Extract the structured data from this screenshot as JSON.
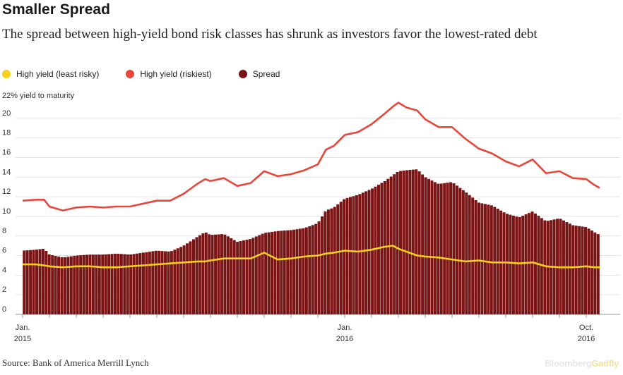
{
  "title": "Smaller Spread",
  "subtitle": "The spread between high-yield bond risk classes has shrunk as investors favor the lowest-rated debt",
  "legend": [
    {
      "label": "High yield (least risky)",
      "color": "#f7d117"
    },
    {
      "label": "High yield (riskiest)",
      "color": "#e8463a"
    },
    {
      "label": "Spread",
      "color": "#7a1414"
    }
  ],
  "source": "Source: Bank of America Merrill Lynch",
  "brand": {
    "part1": "Bloomberg",
    "part2": "Gadfly"
  },
  "chart_data": {
    "type": "line",
    "ylabel": "22% yield to maturity",
    "ylim": [
      0,
      22
    ],
    "yticks": [
      0,
      2,
      4,
      6,
      8,
      10,
      12,
      14,
      16,
      18,
      20
    ],
    "xlabels": [
      {
        "line1": "Jan.",
        "line2": "2015",
        "x": 0
      },
      {
        "line1": "Jan.",
        "line2": "2016",
        "x": 12
      },
      {
        "line1": "Oct.",
        "line2": "2016",
        "x": 21
      }
    ],
    "xlim": [
      0,
      22
    ],
    "x": [
      0,
      0.5,
      0.8,
      1,
      1.5,
      2,
      2.5,
      3,
      3.5,
      4,
      4.5,
      5,
      5.5,
      6,
      6.5,
      6.8,
      7,
      7.5,
      8,
      8.5,
      9,
      9.5,
      10,
      10.5,
      11,
      11.3,
      11.6,
      12,
      12.5,
      13,
      13.5,
      13.8,
      14,
      14.3,
      14.7,
      15,
      15.5,
      16,
      16.5,
      17,
      17.5,
      18,
      18.5,
      19,
      19.5,
      20,
      20.5,
      21,
      21.3,
      21.5
    ],
    "series": [
      {
        "name": "High yield (riskiest)",
        "color": "#e8463a",
        "values": [
          11.6,
          11.7,
          11.7,
          11.0,
          10.6,
          10.9,
          11.0,
          10.9,
          11.0,
          11.0,
          11.3,
          11.6,
          11.6,
          12.3,
          13.3,
          13.8,
          13.6,
          13.9,
          13.1,
          13.4,
          14.6,
          14.1,
          14.3,
          14.7,
          15.3,
          16.8,
          17.2,
          18.3,
          18.6,
          19.4,
          20.5,
          21.2,
          21.6,
          21.1,
          20.8,
          19.9,
          19.1,
          19.1,
          17.9,
          16.9,
          16.4,
          15.6,
          15.1,
          15.8,
          14.4,
          14.6,
          13.9,
          13.8,
          13.2,
          12.9
        ]
      },
      {
        "name": "High yield (least risky)",
        "color": "#f7d117",
        "values": [
          5.1,
          5.1,
          5.0,
          4.9,
          4.8,
          4.9,
          4.9,
          4.8,
          4.8,
          4.9,
          5.0,
          5.1,
          5.2,
          5.3,
          5.4,
          5.4,
          5.5,
          5.7,
          5.7,
          5.7,
          6.3,
          5.6,
          5.7,
          5.9,
          6.0,
          6.2,
          6.3,
          6.5,
          6.4,
          6.6,
          6.9,
          7.0,
          6.7,
          6.4,
          6.0,
          5.9,
          5.8,
          5.6,
          5.4,
          5.5,
          5.3,
          5.3,
          5.2,
          5.3,
          4.9,
          4.8,
          4.8,
          4.9,
          4.8,
          4.8
        ]
      },
      {
        "name": "Spread",
        "color": "#7a1414",
        "values": [
          6.5,
          6.6,
          6.7,
          6.1,
          5.8,
          6.0,
          6.1,
          6.1,
          6.2,
          6.1,
          6.3,
          6.5,
          6.4,
          7.0,
          7.9,
          8.4,
          8.1,
          8.2,
          7.4,
          7.7,
          8.3,
          8.5,
          8.6,
          8.8,
          9.3,
          10.6,
          10.9,
          11.8,
          12.2,
          12.8,
          13.6,
          14.2,
          14.6,
          14.7,
          14.8,
          14.0,
          13.3,
          13.5,
          12.5,
          11.4,
          11.1,
          10.3,
          9.9,
          10.5,
          9.5,
          9.8,
          9.1,
          8.9,
          8.4,
          8.1
        ]
      }
    ]
  }
}
